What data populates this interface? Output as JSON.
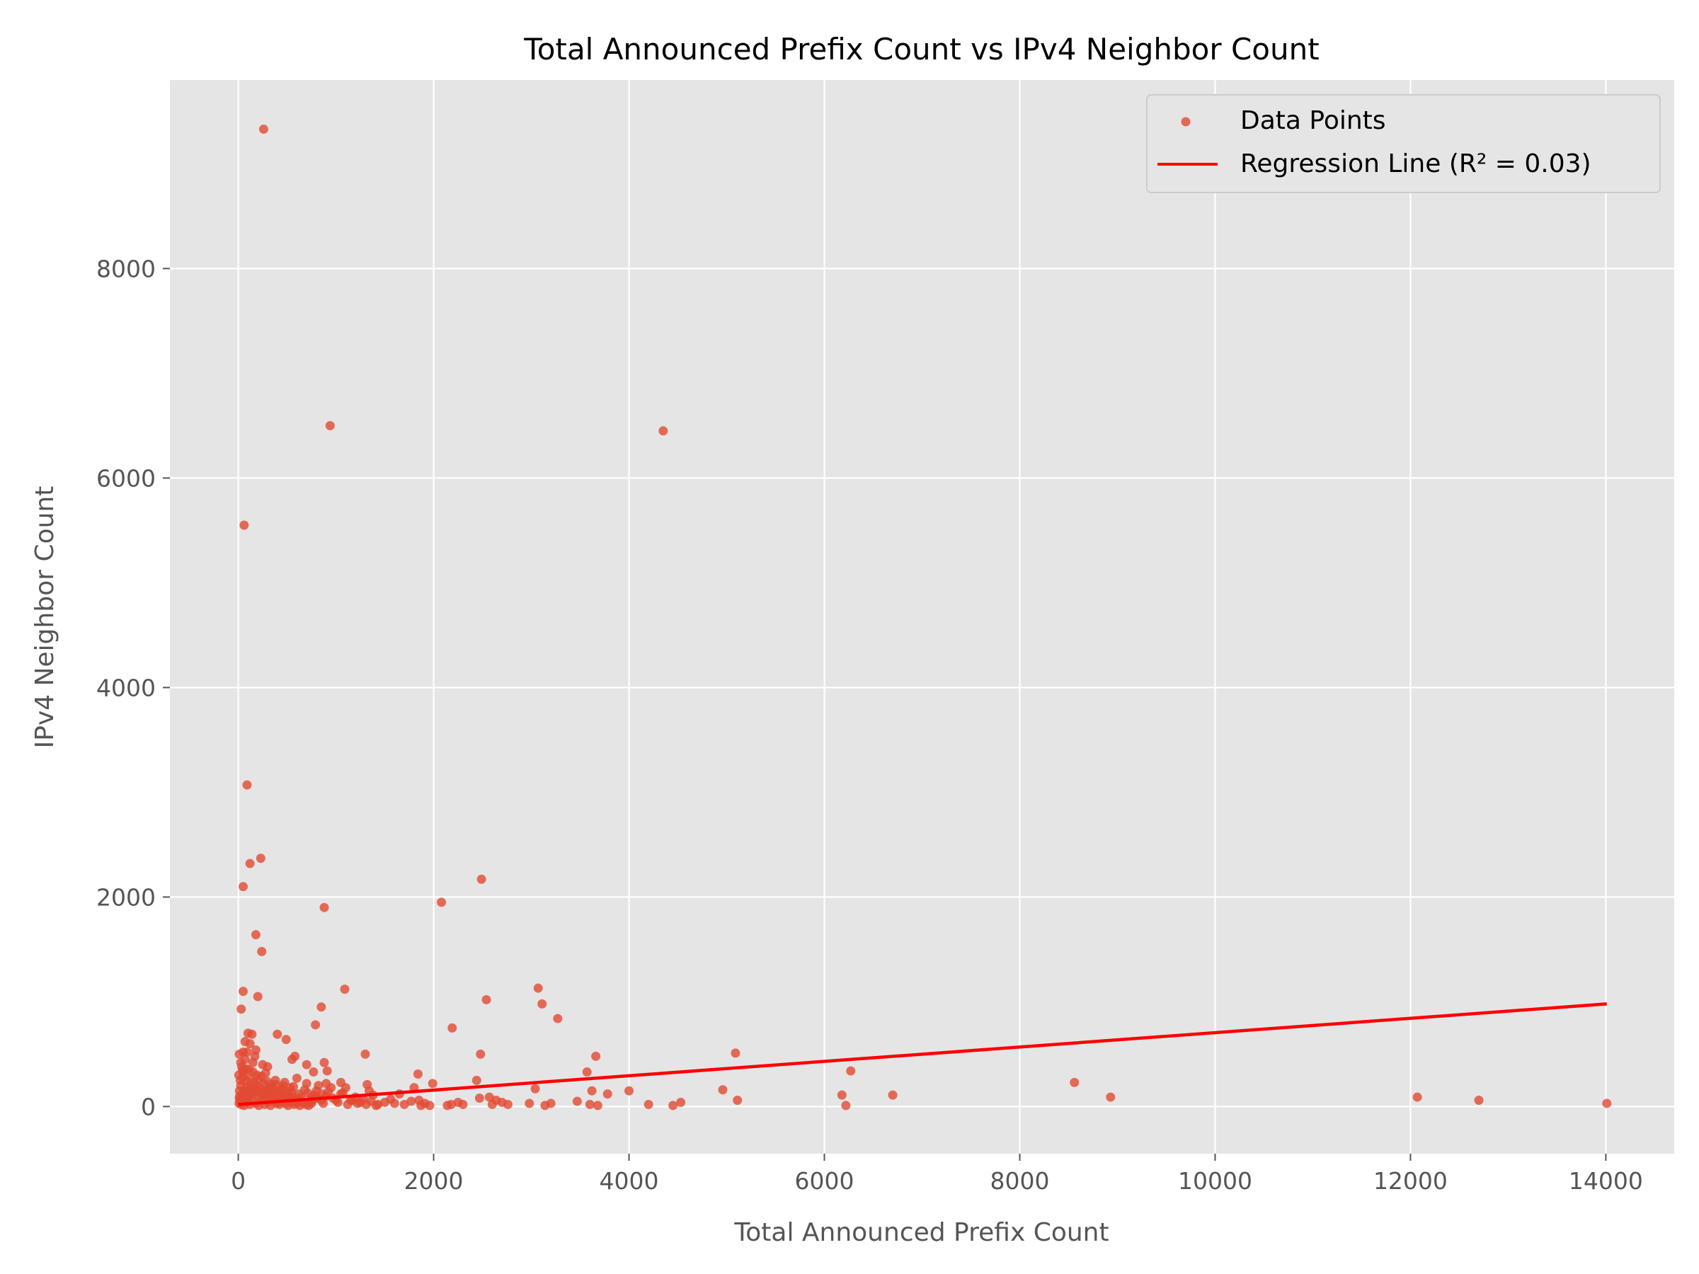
{
  "colors": {
    "background": "#ffffff",
    "plot_background": "#e5e5e5",
    "grid": "#ffffff",
    "points": "#e24a33",
    "regression_line": "#ff0000",
    "text": "#555555"
  },
  "chart_data": {
    "type": "scatter",
    "title": "Total Announced Prefix Count vs IPv4 Neighbor Count",
    "xlabel": "Total Announced Prefix Count",
    "ylabel": "IPv4 Neighbor Count",
    "xlim": [
      -700,
      14700
    ],
    "ylim": [
      -450,
      9800
    ],
    "xticks": [
      0,
      2000,
      4000,
      6000,
      8000,
      10000,
      12000,
      14000
    ],
    "yticks": [
      0,
      2000,
      4000,
      6000,
      8000
    ],
    "grid": true,
    "legend_placement": "top-right",
    "legend": [
      "Data Points",
      "Regression Line (R² = 0.03)"
    ],
    "series": [
      {
        "name": "Data Points",
        "kind": "scatter",
        "points": [
          [
            260,
            9330
          ],
          [
            940,
            6500
          ],
          [
            4350,
            6450
          ],
          [
            60,
            5550
          ],
          [
            90,
            3070
          ],
          [
            230,
            2370
          ],
          [
            120,
            2320
          ],
          [
            50,
            2100
          ],
          [
            2490,
            2170
          ],
          [
            880,
            1900
          ],
          [
            2080,
            1950
          ],
          [
            180,
            1640
          ],
          [
            240,
            1480
          ],
          [
            3070,
            1130
          ],
          [
            3110,
            980
          ],
          [
            3270,
            840
          ],
          [
            1090,
            1120
          ],
          [
            50,
            1100
          ],
          [
            200,
            1050
          ],
          [
            30,
            930
          ],
          [
            850,
            950
          ],
          [
            2540,
            1020
          ],
          [
            790,
            780
          ],
          [
            2190,
            750
          ],
          [
            100,
            700
          ],
          [
            140,
            690
          ],
          [
            400,
            690
          ],
          [
            490,
            640
          ],
          [
            70,
            620
          ],
          [
            120,
            600
          ],
          [
            5090,
            510
          ],
          [
            2480,
            500
          ],
          [
            1300,
            500
          ],
          [
            3660,
            480
          ],
          [
            50,
            520
          ],
          [
            180,
            540
          ],
          [
            580,
            480
          ],
          [
            550,
            450
          ],
          [
            700,
            400
          ],
          [
            880,
            420
          ],
          [
            250,
            400
          ],
          [
            300,
            380
          ],
          [
            80,
            360
          ],
          [
            150,
            330
          ],
          [
            910,
            340
          ],
          [
            770,
            330
          ],
          [
            6270,
            340
          ],
          [
            8560,
            230
          ],
          [
            2440,
            250
          ],
          [
            1990,
            220
          ],
          [
            1840,
            310
          ],
          [
            900,
            220
          ],
          [
            1050,
            230
          ],
          [
            1320,
            210
          ],
          [
            1800,
            180
          ],
          [
            3570,
            330
          ],
          [
            3620,
            150
          ],
          [
            4000,
            150
          ],
          [
            4960,
            160
          ],
          [
            3040,
            170
          ],
          [
            3780,
            120
          ],
          [
            1650,
            120
          ],
          [
            6180,
            110
          ],
          [
            6700,
            110
          ],
          [
            8930,
            90
          ],
          [
            12070,
            90
          ],
          [
            12700,
            60
          ],
          [
            14010,
            30
          ],
          [
            5110,
            60
          ],
          [
            4530,
            40
          ],
          [
            4200,
            20
          ],
          [
            4450,
            10
          ],
          [
            6220,
            10
          ],
          [
            3680,
            10
          ],
          [
            3600,
            20
          ],
          [
            3470,
            50
          ],
          [
            3200,
            30
          ],
          [
            3140,
            10
          ],
          [
            2980,
            30
          ],
          [
            2760,
            20
          ],
          [
            2700,
            40
          ],
          [
            2640,
            60
          ],
          [
            2600,
            20
          ],
          [
            2570,
            90
          ],
          [
            2470,
            80
          ],
          [
            2300,
            20
          ],
          [
            2250,
            40
          ],
          [
            2180,
            20
          ],
          [
            2140,
            10
          ],
          [
            1960,
            10
          ],
          [
            1910,
            30
          ],
          [
            1870,
            10
          ],
          [
            1850,
            60
          ],
          [
            1770,
            50
          ],
          [
            1700,
            20
          ],
          [
            1600,
            30
          ],
          [
            1560,
            70
          ],
          [
            1500,
            40
          ],
          [
            1430,
            20
          ],
          [
            1380,
            110
          ],
          [
            1340,
            150
          ],
          [
            1250,
            40
          ],
          [
            1200,
            90
          ],
          [
            1150,
            60
          ],
          [
            1100,
            180
          ],
          [
            1050,
            120
          ],
          [
            1000,
            60
          ],
          [
            950,
            180
          ],
          [
            900,
            100
          ],
          [
            850,
            60
          ],
          [
            800,
            150
          ],
          [
            750,
            90
          ],
          [
            700,
            220
          ],
          [
            650,
            50
          ],
          [
            600,
            270
          ],
          [
            550,
            130
          ],
          [
            500,
            60
          ],
          [
            460,
            200
          ],
          [
            420,
            110
          ],
          [
            380,
            250
          ],
          [
            340,
            70
          ],
          [
            300,
            160
          ],
          [
            260,
            220
          ],
          [
            220,
            90
          ],
          [
            190,
            300
          ],
          [
            160,
            120
          ],
          [
            130,
            200
          ],
          [
            100,
            80
          ],
          [
            80,
            250
          ],
          [
            60,
            150
          ],
          [
            40,
            60
          ],
          [
            25,
            200
          ],
          [
            15,
            100
          ],
          [
            8,
            30
          ],
          [
            5,
            300
          ],
          [
            12,
            150
          ],
          [
            20,
            50
          ],
          [
            35,
            380
          ],
          [
            45,
            280
          ],
          [
            70,
            450
          ],
          [
            110,
            350
          ],
          [
            150,
            420
          ],
          [
            210,
            260
          ],
          [
            280,
            320
          ],
          [
            330,
            180
          ],
          [
            370,
            130
          ],
          [
            440,
            170
          ],
          [
            520,
            140
          ],
          [
            560,
            80
          ],
          [
            620,
            120
          ],
          [
            680,
            160
          ],
          [
            730,
            40
          ],
          [
            780,
            110
          ],
          [
            820,
            200
          ],
          [
            870,
            30
          ],
          [
            920,
            140
          ],
          [
            970,
            80
          ],
          [
            1020,
            40
          ],
          [
            1070,
            130
          ],
          [
            1120,
            20
          ],
          [
            1170,
            60
          ],
          [
            1220,
            30
          ],
          [
            1280,
            70
          ],
          [
            1310,
            20
          ],
          [
            1360,
            50
          ],
          [
            1410,
            10
          ],
          [
            30,
            20
          ],
          [
            60,
            10
          ],
          [
            90,
            40
          ],
          [
            120,
            20
          ],
          [
            150,
            50
          ],
          [
            180,
            30
          ],
          [
            210,
            10
          ],
          [
            240,
            60
          ],
          [
            270,
            20
          ],
          [
            300,
            40
          ],
          [
            330,
            10
          ],
          [
            360,
            50
          ],
          [
            390,
            30
          ],
          [
            420,
            20
          ],
          [
            450,
            60
          ],
          [
            480,
            30
          ],
          [
            510,
            10
          ],
          [
            540,
            40
          ],
          [
            570,
            20
          ],
          [
            600,
            30
          ],
          [
            630,
            10
          ],
          [
            660,
            40
          ],
          [
            690,
            20
          ],
          [
            720,
            10
          ],
          [
            750,
            30
          ],
          [
            10,
            80
          ],
          [
            40,
            120
          ],
          [
            70,
            90
          ],
          [
            100,
            160
          ],
          [
            130,
            110
          ],
          [
            160,
            230
          ],
          [
            190,
            140
          ],
          [
            220,
            180
          ],
          [
            250,
            110
          ],
          [
            280,
            150
          ],
          [
            310,
            90
          ],
          [
            340,
            210
          ],
          [
            370,
            60
          ],
          [
            400,
            140
          ],
          [
            430,
            80
          ],
          [
            460,
            120
          ],
          [
            490,
            90
          ],
          [
            530,
            180
          ],
          [
            590,
            60
          ],
          [
            640,
            90
          ],
          [
            710,
            130
          ],
          [
            760,
            60
          ],
          [
            810,
            80
          ],
          [
            860,
            120
          ],
          [
            20,
            250
          ],
          [
            55,
            330
          ],
          [
            85,
            190
          ],
          [
            115,
            270
          ],
          [
            145,
            140
          ],
          [
            175,
            210
          ],
          [
            205,
            160
          ],
          [
            235,
            290
          ],
          [
            265,
            130
          ],
          [
            295,
            240
          ],
          [
            325,
            100
          ],
          [
            355,
            170
          ],
          [
            385,
            210
          ],
          [
            415,
            40
          ],
          [
            445,
            150
          ],
          [
            475,
            230
          ],
          [
            505,
            110
          ],
          [
            535,
            70
          ],
          [
            565,
            190
          ],
          [
            10,
            500
          ],
          [
            25,
            420
          ],
          [
            40,
            340
          ],
          [
            90,
            520
          ],
          [
            170,
            480
          ]
        ]
      },
      {
        "name": "Regression Line (R² = 0.03)",
        "kind": "line",
        "points": [
          [
            0,
            20
          ],
          [
            14010,
            980
          ]
        ]
      }
    ]
  }
}
